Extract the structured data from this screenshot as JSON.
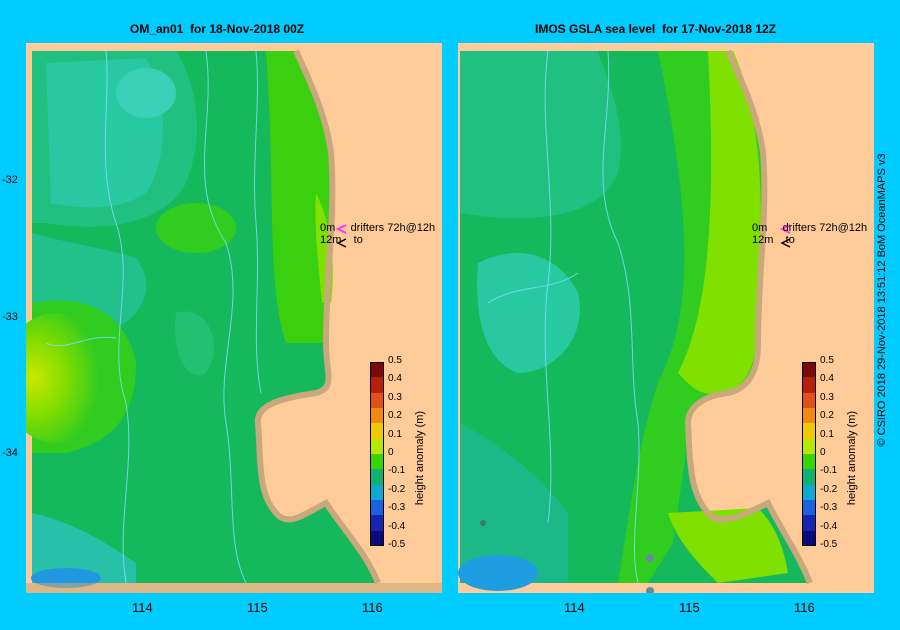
{
  "left_panel": {
    "title": "OM_an01  for 18-Nov-2018 00Z"
  },
  "right_panel": {
    "title": "IMOS GSLA sea level  for 17-Nov-2018 12Z"
  },
  "y_ticks": [
    "-32",
    "-33",
    "-34"
  ],
  "x_ticks": [
    "114",
    "115",
    "116"
  ],
  "colorbar": {
    "label": "height anomaly (m)",
    "ticks": [
      "0.5",
      "0.4",
      "0.3",
      "0.2",
      "0.1",
      "0",
      "-0.1",
      "-0.2",
      "-0.3",
      "-0.4",
      "-0.5"
    ],
    "colors": [
      "#7a0a0a",
      "#b8200e",
      "#e0501a",
      "#f08a10",
      "#f0c800",
      "#b8e800",
      "#38d400",
      "#10b070",
      "#10a8d0",
      "#1a60e0",
      "#1a22b0",
      "#0a0a78"
    ]
  },
  "legend": {
    "row1_depth": "0m",
    "row1_text": "drifters 72h@12h",
    "row2_depth": "12m",
    "row2_text": "to"
  },
  "credit": "© CSIRO 2018   29-Nov-2018 13:51:12 BoM OceanMAPS v3",
  "colors": {
    "background": "#00ccff",
    "land": "#ffcc99",
    "coast": "#c8a87c",
    "drifter_0m": "#ff33ff",
    "drifter_12m": "#000000"
  }
}
